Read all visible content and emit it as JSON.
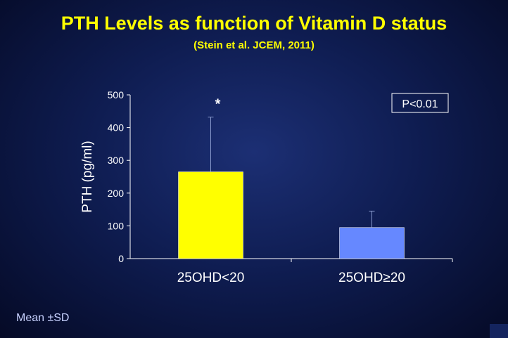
{
  "title": "PTH Levels as function of Vitamin D status",
  "subtitle": "(Stein et al. JCEM, 2011)",
  "footnote": "Mean ±SD",
  "colors": {
    "title": "#ffff00",
    "axis": "#ffffff",
    "bar1": "#ffff00",
    "bar2": "#6688ff",
    "error_bar": "#8899cc"
  },
  "chart_data": {
    "type": "bar",
    "title": "PTH Levels as function of Vitamin D status",
    "subtitle": "(Stein et al. JCEM, 2011)",
    "xlabel": "",
    "ylabel": "PTH (pg/ml)",
    "ylim": [
      0,
      500
    ],
    "yticks": [
      0,
      100,
      200,
      300,
      400,
      500
    ],
    "categories": [
      "25OHD<20",
      "25OHD≥20"
    ],
    "values": [
      265,
      95
    ],
    "error_sd": [
      167,
      50
    ],
    "significance": [
      "*",
      ""
    ],
    "annotation": "P<0.01",
    "grid": false,
    "legend": "none"
  }
}
